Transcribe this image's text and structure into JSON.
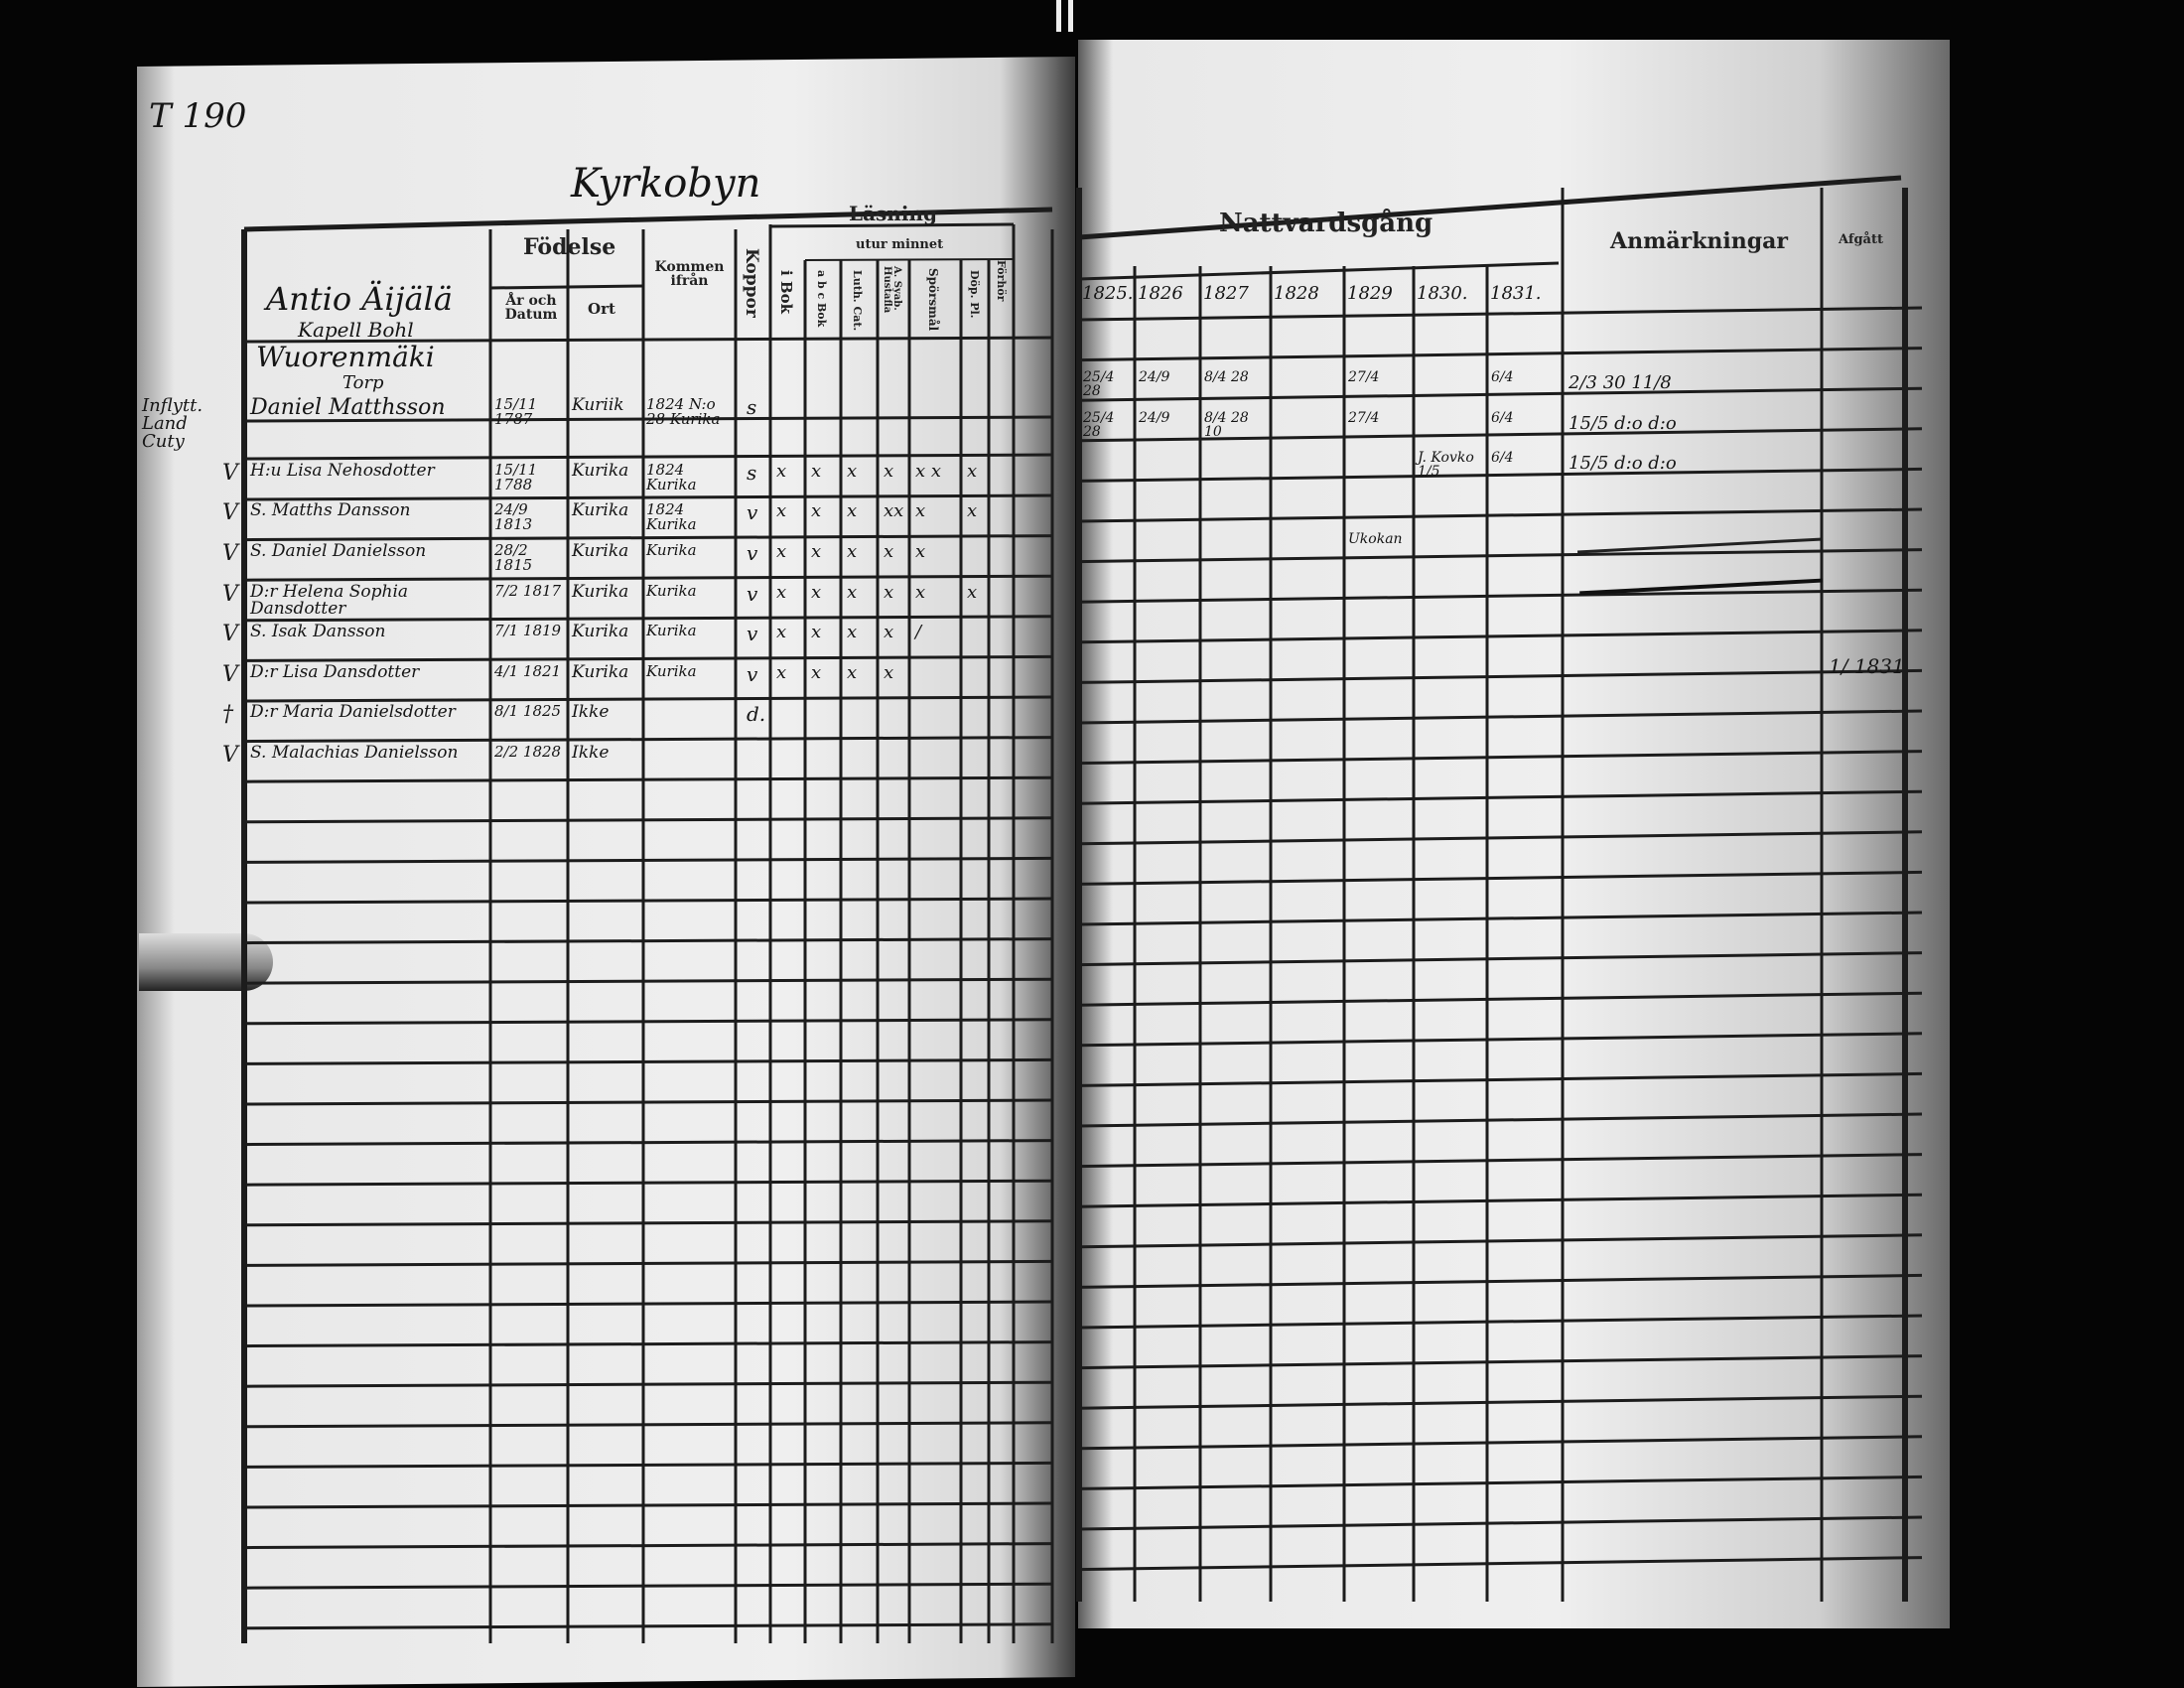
{
  "document": {
    "page_number": "T 190",
    "village": "Kyrkobyn",
    "name_column_heading": [
      "Antio Äijälä",
      "Kapell Bohl"
    ]
  },
  "left_headers": {
    "fodelse": "Födelse",
    "ar_och_datum": "År och Datum",
    "ort": "Ort",
    "kommen_ifran": "Kommen ifrån",
    "koppor": "Koppor",
    "lasning": "Läsning",
    "utur_minnet": "utur minnet",
    "i_bok": "i Bok",
    "abc_bok": "a b c Bok",
    "luth_cat": "Luth. Cat.",
    "a_syab_hustafla": "A. Syab. Hustafla",
    "sporsmal": "Spörsmål",
    "dop_pl": "Döp. Pl.",
    "forhor": "Förhör"
  },
  "right_headers": {
    "nattvardsgang": "Nattvardsgång",
    "years": [
      "1825.",
      "1826",
      "1827",
      "1828",
      "1829",
      "1830.",
      "1831."
    ],
    "anmarkningar": "Anmärkningar",
    "afgatt": "Afgått"
  },
  "household": {
    "farm": "Wuorenmäki",
    "type": "Torp"
  },
  "persons": [
    {
      "margin": "",
      "name": "Daniel Matthsson",
      "birth": "15/11 1787",
      "place": "Kuriik",
      "from": "1824 N:o 28 Kurika",
      "koppor": "s",
      "reading": [
        "",
        "",
        "",
        "",
        "",
        "",
        ""
      ]
    },
    {
      "margin": "V",
      "name": "H:u Lisa Nehosdotter",
      "birth": "15/11 1788",
      "place": "Kurika",
      "from": "1824 Kurika",
      "koppor": "s",
      "reading": [
        "x",
        "x",
        "x",
        "x",
        "x x",
        "x",
        ""
      ]
    },
    {
      "margin": "V",
      "name": "S. Matths Dansson",
      "birth": "24/9 1813",
      "place": "Kurika",
      "from": "1824 Kurika",
      "koppor": "v",
      "reading": [
        "x",
        "x",
        "x",
        "xx",
        "x",
        "x",
        ""
      ]
    },
    {
      "margin": "V",
      "name": "S. Daniel Danielsson",
      "birth": "28/2 1815",
      "place": "Kurika",
      "from": "Kurika",
      "koppor": "v",
      "reading": [
        "x",
        "x",
        "x",
        "x",
        "x",
        "",
        ""
      ]
    },
    {
      "margin": "V",
      "name": "D:r Helena Sophia Dansdotter",
      "birth": "7/2 1817",
      "place": "Kurika",
      "from": "Kurika",
      "koppor": "v",
      "reading": [
        "x",
        "x",
        "x",
        "x",
        "x",
        "x",
        ""
      ]
    },
    {
      "margin": "V",
      "name": "S. Isak Dansson",
      "birth": "7/1 1819",
      "place": "Kurika",
      "from": "Kurika",
      "koppor": "v",
      "reading": [
        "x",
        "x",
        "x",
        "x",
        "/",
        "",
        ""
      ]
    },
    {
      "margin": "V",
      "name": "D:r Lisa Dansdotter",
      "birth": "4/1 1821",
      "place": "Kurika",
      "from": "Kurika",
      "koppor": "v",
      "reading": [
        "x",
        "x",
        "x",
        "x",
        "",
        "",
        ""
      ]
    },
    {
      "margin": "†",
      "name": "D:r Maria Danielsdotter",
      "birth": "8/1 1825",
      "place": "Ikke",
      "from": "",
      "koppor": "d.",
      "reading": [
        "",
        "",
        "",
        "",
        "",
        "",
        ""
      ]
    },
    {
      "margin": "V",
      "name": "S. Malachias Danielsson",
      "birth": "2/2 1828",
      "place": "Ikke",
      "from": "",
      "koppor": "",
      "reading": [
        "",
        "",
        "",
        "",
        "",
        "",
        ""
      ]
    }
  ],
  "left_margin_note": "Inflytt. Land Cuty",
  "communion": [
    {
      "row": 1,
      "dates": [
        "25/4 28",
        "24/9",
        "8/4 28",
        "",
        "27/4",
        "",
        "6/4"
      ],
      "remark": "2/3 30 11/8",
      "afgatt": ""
    },
    {
      "row": 3,
      "dates": [
        "25/4 28",
        "24/9",
        "8/4 28 10",
        "",
        "27/4",
        "",
        "6/4"
      ],
      "remark": "15/5 d:o d:o",
      "afgatt": ""
    },
    {
      "row": 4,
      "dates": [
        "",
        "",
        "",
        "",
        "",
        "J. Kovko 1/5",
        "6/4"
      ],
      "remark": "15/5 d:o d:o",
      "afgatt": ""
    },
    {
      "row": 6,
      "dates": [
        "",
        "",
        "",
        "",
        "Ukokan",
        "",
        ""
      ],
      "remark": "",
      "afgatt": ""
    },
    {
      "row": 9,
      "dates": [
        "",
        "",
        "",
        "",
        "",
        "",
        ""
      ],
      "remark": "",
      "afgatt": "1/ 1831"
    }
  ],
  "colors": {
    "paper": "#eeeeee",
    "ink": "#1a1a1a",
    "background": "#050505"
  }
}
